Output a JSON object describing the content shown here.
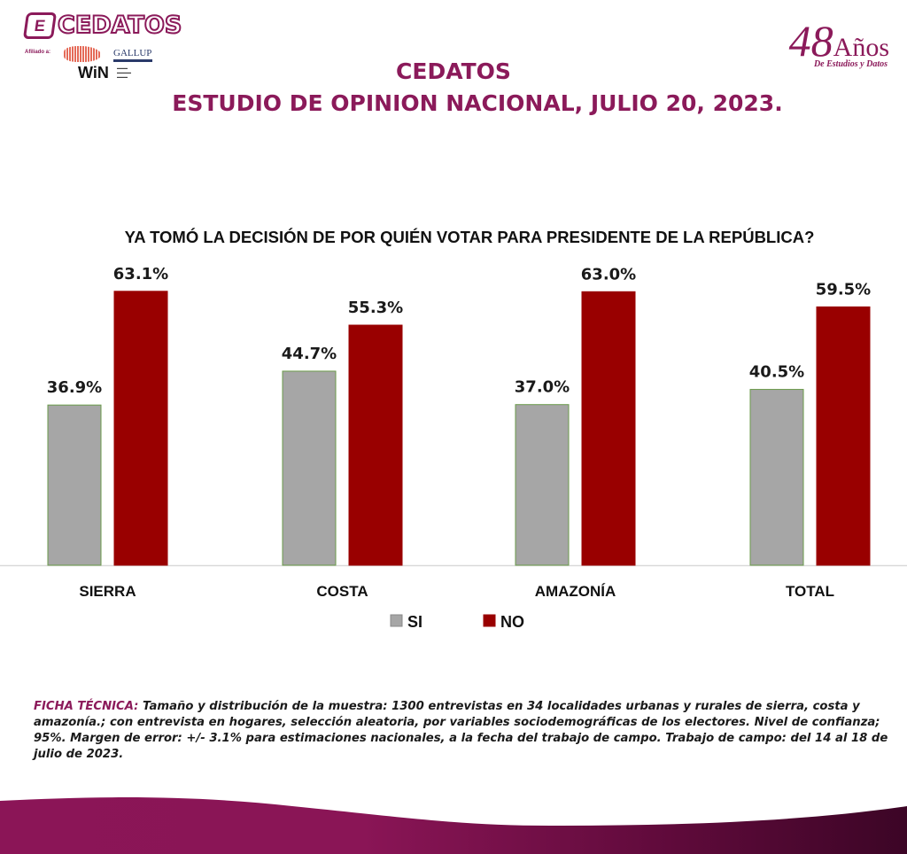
{
  "header": {
    "logo_text": "CEDATOS",
    "affiliate_label": "Afiliado a:",
    "gallup_text": "GALLUP",
    "win_text": "WiN",
    "anniversary_number": "48",
    "anniversary_word": "Años",
    "anniversary_sub": "De Estudios y Datos",
    "title_line1": "CEDATOS",
    "title_line2": "ESTUDIO DE OPINION NACIONAL, JULIO 20, 2023."
  },
  "colors": {
    "brand": "#8b1a5a",
    "si": "#a6a6a6",
    "si_border": "#6a9a4a",
    "no": "#990000",
    "axis": "#d9d9d9"
  },
  "chart_data": {
    "type": "bar",
    "title": "YA TOMÓ LA DECISIÓN DE POR QUIÉN VOTAR PARA PRESIDENTE DE LA REPÚBLICA?",
    "categories": [
      "SIERRA",
      "COSTA",
      "AMAZONÍA",
      "TOTAL"
    ],
    "series": [
      {
        "name": "SI",
        "values": [
          36.9,
          44.7,
          37.0,
          40.5
        ],
        "labels": [
          "36.9%",
          "44.7%",
          "37.0%",
          "40.5%"
        ]
      },
      {
        "name": "NO",
        "values": [
          63.1,
          55.3,
          63.0,
          59.5
        ],
        "labels": [
          "63.1%",
          "55.3%",
          "63.0%",
          "59.5%"
        ]
      }
    ],
    "xlabel": "",
    "ylabel": "",
    "ylim": [
      0,
      70
    ],
    "grid": false,
    "legend": "bottom"
  },
  "footer": {
    "ficha_label": "FICHA TÉCNICA:",
    "ficha_text": " Tamaño y distribución de la muestra:  1300 entrevistas en 34 localidades urbanas y rurales de sierra, costa y amazonía.; con entrevista en hogares, selección aleatoria, por variables sociodemográficas de los electores. Nivel de confianza; 95%. Margen de error: +/- 3.1% para estimaciones nacionales, a la fecha del trabajo de campo. Trabajo de campo: del 14 al 18 de julio de 2023."
  }
}
